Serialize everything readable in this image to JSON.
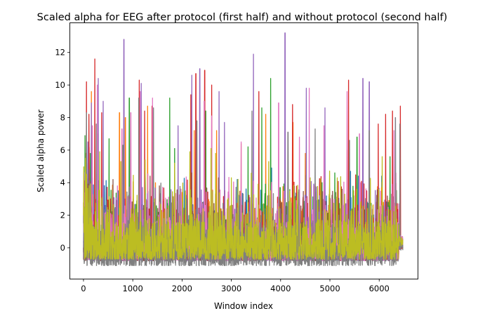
{
  "chart_data": {
    "type": "line",
    "title": "Scaled alpha for EEG after protocol (first half) and without protocol (second half)",
    "xlabel": "Window index",
    "ylabel": "Scaled alpha power",
    "xlim": [
      -270,
      6780
    ],
    "ylim": [
      -1.9,
      13.8
    ],
    "xticks": [
      0,
      1000,
      2000,
      3000,
      4000,
      5000,
      6000
    ],
    "yticks": [
      0,
      2,
      4,
      6,
      8,
      10,
      12
    ],
    "x_range": [
      0,
      6480
    ],
    "grid": false,
    "legend": "none",
    "series": [
      {
        "color": "#1f77b4",
        "baseline": 0.3,
        "floor": -0.75,
        "peaks": [
          [
            60,
            5.1
          ],
          [
            180,
            4.3
          ],
          [
            700,
            3.5
          ],
          [
            1250,
            4.7
          ],
          [
            2450,
            5.6
          ],
          [
            3120,
            4.2
          ],
          [
            3820,
            4.9
          ],
          [
            4350,
            2.8
          ],
          [
            4900,
            3.4
          ],
          [
            5420,
            4.7
          ],
          [
            6050,
            4.4
          ]
        ]
      },
      {
        "color": "#ff7f0e",
        "baseline": 0.3,
        "floor": -0.75,
        "peaks": [
          [
            50,
            5.8
          ],
          [
            160,
            9.6
          ],
          [
            290,
            7.0
          ],
          [
            730,
            8.3
          ],
          [
            850,
            8.0
          ],
          [
            1300,
            8.7
          ],
          [
            2250,
            7.2
          ],
          [
            2700,
            7.2
          ],
          [
            3200,
            6.4
          ],
          [
            3560,
            5.8
          ],
          [
            3700,
            8.2
          ],
          [
            4250,
            7.7
          ],
          [
            4500,
            5.8
          ],
          [
            5350,
            6.0
          ]
        ]
      },
      {
        "color": "#2ca02c",
        "baseline": 0.3,
        "floor": -0.75,
        "peaks": [
          [
            140,
            5.8
          ],
          [
            520,
            6.7
          ],
          [
            800,
            6.3
          ],
          [
            930,
            9.2
          ],
          [
            1750,
            9.2
          ],
          [
            1850,
            6.1
          ],
          [
            2480,
            8.4
          ],
          [
            3340,
            6.2
          ],
          [
            3620,
            8.6
          ],
          [
            3800,
            10.4
          ],
          [
            3990,
            3.7
          ],
          [
            5100,
            4.6
          ],
          [
            5550,
            6.8
          ],
          [
            6220,
            5.6
          ]
        ]
      },
      {
        "color": "#d62728",
        "baseline": 0.3,
        "floor": -0.75,
        "peaks": [
          [
            60,
            10.2
          ],
          [
            110,
            8.2
          ],
          [
            230,
            11.6
          ],
          [
            370,
            8.3
          ],
          [
            1130,
            10.3
          ],
          [
            1240,
            8.4
          ],
          [
            1390,
            8.7
          ],
          [
            2180,
            9.4
          ],
          [
            2280,
            10.7
          ],
          [
            2460,
            10.9
          ],
          [
            2600,
            10.0
          ],
          [
            3560,
            9.6
          ],
          [
            4240,
            8.8
          ],
          [
            5380,
            10.3
          ],
          [
            5980,
            7.6
          ],
          [
            6130,
            8.2
          ],
          [
            6270,
            8.4
          ],
          [
            6430,
            8.7
          ]
        ]
      },
      {
        "color": "#9467bd",
        "baseline": 0.3,
        "floor": -0.8,
        "peaks": [
          [
            90,
            6.5
          ],
          [
            160,
            8.9
          ],
          [
            300,
            10.4
          ],
          [
            400,
            9.0
          ],
          [
            820,
            12.8
          ],
          [
            1170,
            10.1
          ],
          [
            1920,
            7.5
          ],
          [
            2200,
            10.6
          ],
          [
            2360,
            11.0
          ],
          [
            2750,
            9.6
          ],
          [
            2860,
            7.7
          ],
          [
            3450,
            11.9
          ],
          [
            4090,
            13.2
          ],
          [
            4520,
            9.8
          ],
          [
            4900,
            8.6
          ],
          [
            5670,
            10.4
          ],
          [
            5800,
            10.2
          ],
          [
            6330,
            8.0
          ]
        ]
      },
      {
        "color": "#8c564b",
        "baseline": 0.3,
        "floor": -0.8,
        "peaks": [
          [
            110,
            4.8
          ],
          [
            270,
            4.5
          ],
          [
            600,
            4.2
          ],
          [
            1350,
            4.4
          ],
          [
            2200,
            4.6
          ],
          [
            2740,
            4.3
          ],
          [
            3800,
            3.5
          ],
          [
            4600,
            3.8
          ],
          [
            5250,
            3.6
          ]
        ]
      },
      {
        "color": "#e377c2",
        "baseline": 0.4,
        "floor": -0.8,
        "peaks": [
          [
            180,
            7.5
          ],
          [
            280,
            10.0
          ],
          [
            780,
            7.3
          ],
          [
            960,
            8.3
          ],
          [
            1150,
            9.6
          ],
          [
            1400,
            9.2
          ],
          [
            2450,
            9.0
          ],
          [
            2600,
            8.1
          ],
          [
            3200,
            6.5
          ],
          [
            3960,
            8.9
          ],
          [
            4380,
            6.8
          ],
          [
            4580,
            9.8
          ],
          [
            4880,
            7.5
          ],
          [
            5350,
            9.6
          ],
          [
            5600,
            7.0
          ],
          [
            6300,
            7.2
          ]
        ]
      },
      {
        "color": "#7f7f7f",
        "baseline": 0.2,
        "floor": -1.1,
        "peaks": [
          [
            60,
            8.3
          ],
          [
            260,
            7.6
          ],
          [
            1120,
            9.2
          ],
          [
            1420,
            8.6
          ],
          [
            2300,
            7.8
          ],
          [
            3420,
            8.4
          ],
          [
            4150,
            7.1
          ],
          [
            4700,
            7.3
          ],
          [
            5400,
            6.6
          ],
          [
            5800,
            7.2
          ],
          [
            6330,
            8.0
          ],
          [
            6420,
            7.6
          ]
        ]
      },
      {
        "color": "#bcbd22",
        "baseline": 0.5,
        "floor": -0.7,
        "peaks": [
          [
            40,
            5.5
          ],
          [
            330,
            5.9
          ],
          [
            760,
            5.3
          ],
          [
            1250,
            5.4
          ],
          [
            1850,
            5.2
          ],
          [
            2160,
            5.9
          ],
          [
            2590,
            6.1
          ],
          [
            2680,
            5.8
          ],
          [
            3000,
            4.3
          ],
          [
            3760,
            5.3
          ],
          [
            4600,
            4.3
          ],
          [
            5150,
            4.3
          ],
          [
            6060,
            5.6
          ]
        ]
      }
    ]
  }
}
